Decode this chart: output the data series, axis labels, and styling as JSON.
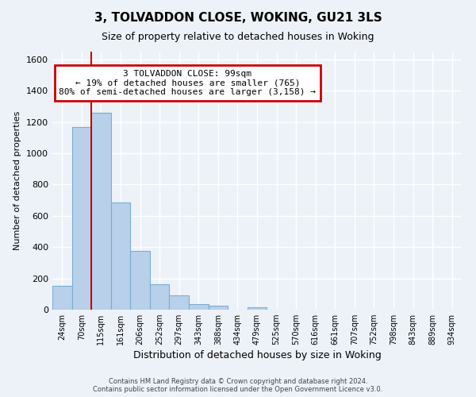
{
  "title": "3, TOLVADDON CLOSE, WOKING, GU21 3LS",
  "subtitle": "Size of property relative to detached houses in Woking",
  "xlabel": "Distribution of detached houses by size in Woking",
  "ylabel": "Number of detached properties",
  "bar_color": "#b8d0ea",
  "bar_edge_color": "#7aadd4",
  "background_color": "#edf2f9",
  "grid_color": "#ffffff",
  "bin_labels": [
    "24sqm",
    "70sqm",
    "115sqm",
    "161sqm",
    "206sqm",
    "252sqm",
    "297sqm",
    "343sqm",
    "388sqm",
    "434sqm",
    "479sqm",
    "525sqm",
    "570sqm",
    "616sqm",
    "661sqm",
    "707sqm",
    "752sqm",
    "798sqm",
    "843sqm",
    "889sqm",
    "934sqm"
  ],
  "bar_heights": [
    150,
    1170,
    1260,
    685,
    375,
    160,
    90,
    35,
    25,
    0,
    15,
    0,
    0,
    0,
    0,
    0,
    0,
    0,
    0,
    0,
    0
  ],
  "property_line_col_idx": 2,
  "property_line_color": "#cc0000",
  "ylim": [
    0,
    1650
  ],
  "yticks": [
    0,
    200,
    400,
    600,
    800,
    1000,
    1200,
    1400,
    1600
  ],
  "annotation_title": "3 TOLVADDON CLOSE: 99sqm",
  "annotation_line1": "← 19% of detached houses are smaller (765)",
  "annotation_line2": "80% of semi-detached houses are larger (3,158) →",
  "annotation_box_color": "#ffffff",
  "annotation_box_edge": "#cc0000",
  "footer1": "Contains HM Land Registry data © Crown copyright and database right 2024.",
  "footer2": "Contains public sector information licensed under the Open Government Licence v3.0.",
  "n_bins": 21
}
